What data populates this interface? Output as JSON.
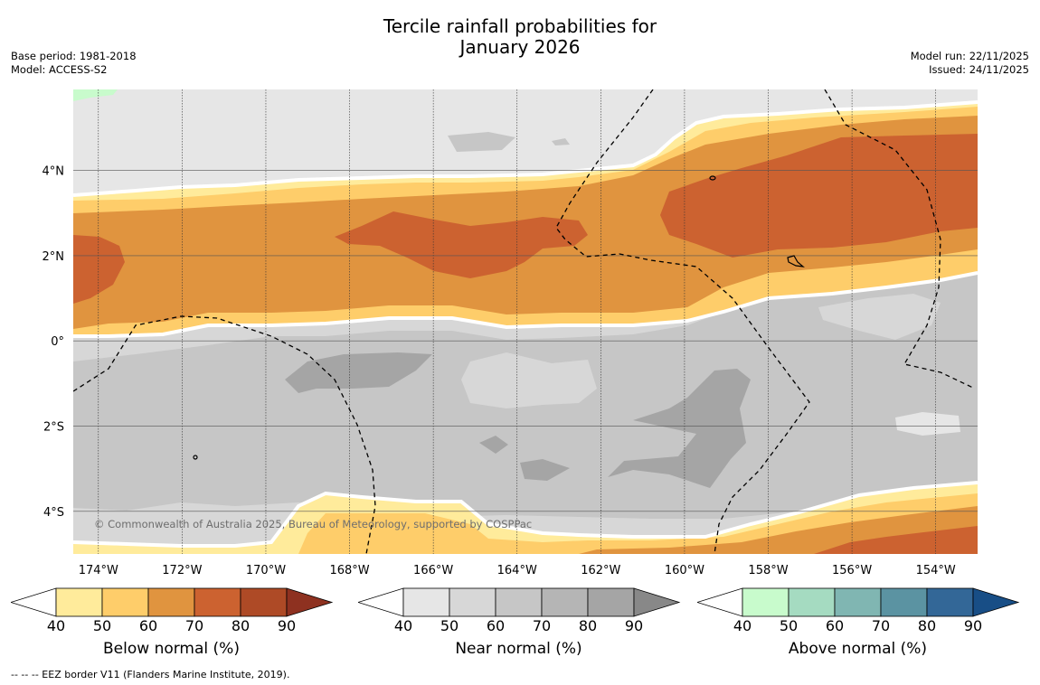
{
  "header": {
    "title_line1": "Tercile rainfall probabilities for",
    "title_line2": "January 2026",
    "base_period": "Base period: 1981-2018",
    "model": "Model: ACCESS-S2",
    "model_run": "Model run: 22/11/2025",
    "issued": "Issued: 24/11/2025"
  },
  "map": {
    "lon_ticks": [
      "174°W",
      "172°W",
      "170°W",
      "168°W",
      "166°W",
      "164°W",
      "162°W",
      "160°W",
      "158°W",
      "156°W",
      "154°W"
    ],
    "lat_ticks": [
      "4°N",
      "2°N",
      "0°",
      "2°S",
      "4°S"
    ],
    "copyright": "© Commonwealth of Australia 2025, Bureau of Meteorology, supported by COSPPac",
    "extent": {
      "lon_min": -174.6,
      "lon_max": -153.0,
      "lat_min": -5.0,
      "lat_max": 5.9
    }
  },
  "colorbars": [
    {
      "name": "below",
      "title": "Below normal (%)",
      "ticks": [
        "40",
        "50",
        "60",
        "70",
        "80",
        "90"
      ],
      "colors": [
        "#ffffff",
        "#ffeb9b",
        "#fecd6a",
        "#e0943f",
        "#cc6230",
        "#ae4a26",
        "#8e3120"
      ]
    },
    {
      "name": "near",
      "title": "Near normal (%)",
      "ticks": [
        "40",
        "50",
        "60",
        "70",
        "80",
        "90"
      ],
      "colors": [
        "#ffffff",
        "#e6e6e6",
        "#d7d7d7",
        "#c6c6c6",
        "#b5b5b5",
        "#a5a5a5",
        "#888888"
      ]
    },
    {
      "name": "above",
      "title": "Above normal (%)",
      "ticks": [
        "40",
        "50",
        "60",
        "70",
        "80",
        "90"
      ],
      "colors": [
        "#ffffff",
        "#c8fbcc",
        "#a5dbc1",
        "#80b6b2",
        "#5b93a2",
        "#336797",
        "#184e86"
      ]
    }
  ],
  "footer": {
    "eez_note": "--  --  -- EEZ border V11 (Flanders Marine Institute, 2019)."
  }
}
